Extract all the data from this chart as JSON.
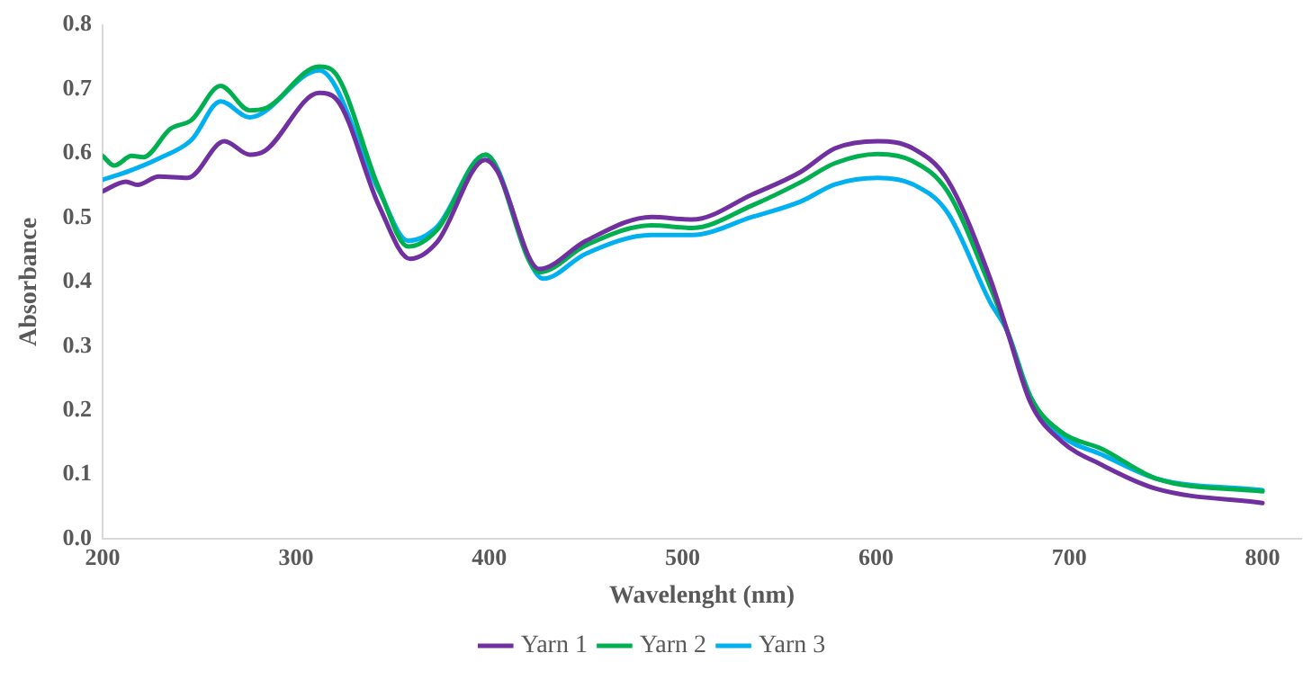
{
  "chart_data": {
    "type": "line",
    "xlabel": "Wavelenght (nm)",
    "ylabel": "Absorbance",
    "xlim": [
      200,
      820
    ],
    "xticks": [
      200,
      300,
      400,
      500,
      600,
      700,
      800
    ],
    "ylim": [
      0,
      0.8
    ],
    "yticks": [
      {
        "value": 0,
        "label": "0.0"
      },
      {
        "value": 0.1,
        "label": "0.1"
      },
      {
        "value": 0.2,
        "label": "0.2"
      },
      {
        "value": 0.3,
        "label": "0.3"
      },
      {
        "value": 0.4,
        "label": "0.4"
      },
      {
        "value": 0.5,
        "label": "0.5"
      },
      {
        "value": 0.6,
        "label": "0.6"
      },
      {
        "value": 0.7,
        "label": "0.7"
      },
      {
        "value": 0.8,
        "label": "0.8"
      }
    ],
    "grid": false,
    "legend": "bottom",
    "marker": "none",
    "line_style": "solid",
    "series": [
      {
        "name": "Yarn 1",
        "color": "#7030a0",
        "x": [
          200,
          212,
          218,
          229,
          244,
          263,
          276,
          284,
          312,
          321,
          343,
          359,
          373,
          398,
          404,
          426,
          450,
          484,
          505,
          536,
          561,
          579,
          601,
          619,
          637,
          659,
          668,
          680,
          696,
          717,
          745,
          800
        ],
        "values": [
          0.541,
          0.556,
          0.551,
          0.564,
          0.562,
          0.619,
          0.598,
          0.604,
          0.694,
          0.684,
          0.518,
          0.436,
          0.462,
          0.59,
          0.573,
          0.42,
          0.464,
          0.501,
          0.497,
          0.536,
          0.571,
          0.608,
          0.619,
          0.608,
          0.559,
          0.406,
          0.323,
          0.212,
          0.152,
          0.115,
          0.078,
          0.056
        ]
      },
      {
        "name": "Yarn 2",
        "color": "#00b050",
        "x": [
          200,
          206,
          215,
          221,
          235,
          246,
          261,
          276,
          284,
          312,
          319,
          343,
          358,
          373,
          398,
          426,
          450,
          484,
          505,
          536,
          561,
          579,
          601,
          619,
          637,
          659,
          668,
          680,
          696,
          717,
          745,
          800
        ],
        "values": [
          0.596,
          0.581,
          0.596,
          0.594,
          0.638,
          0.652,
          0.705,
          0.667,
          0.67,
          0.735,
          0.729,
          0.545,
          0.455,
          0.481,
          0.598,
          0.415,
          0.457,
          0.488,
          0.484,
          0.519,
          0.555,
          0.585,
          0.599,
          0.588,
          0.541,
          0.393,
          0.323,
          0.221,
          0.166,
          0.14,
          0.094,
          0.074
        ]
      },
      {
        "name": "Yarn 3",
        "color": "#00b0f0",
        "x": [
          200,
          214,
          229,
          246,
          261,
          276,
          312,
          343,
          358,
          373,
          398,
          428,
          450,
          484,
          505,
          536,
          561,
          579,
          601,
          619,
          637,
          659,
          668,
          680,
          696,
          717,
          745,
          800
        ],
        "values": [
          0.559,
          0.573,
          0.592,
          0.621,
          0.681,
          0.656,
          0.729,
          0.541,
          0.464,
          0.486,
          0.598,
          0.405,
          0.444,
          0.473,
          0.473,
          0.501,
          0.525,
          0.552,
          0.562,
          0.552,
          0.508,
          0.369,
          0.323,
          0.221,
          0.161,
          0.131,
          0.094,
          0.076
        ]
      }
    ]
  }
}
